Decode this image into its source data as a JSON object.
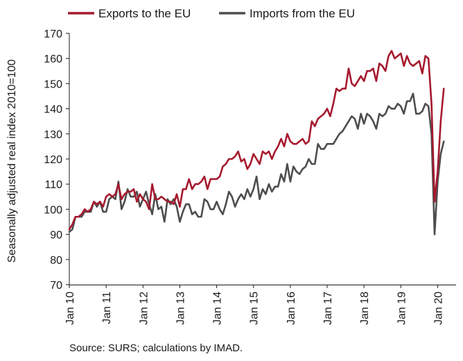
{
  "chart_data": {
    "type": "line",
    "title": "",
    "ylabel": "Seasonally adjusted real index 2010=100",
    "xlabel": "",
    "ylim": [
      70,
      170
    ],
    "yticks": [
      70,
      80,
      90,
      100,
      110,
      120,
      130,
      140,
      150,
      160,
      170
    ],
    "xlim": [
      0,
      126
    ],
    "xticks": [
      {
        "label": "Jan 10",
        "month": 0
      },
      {
        "label": "Jan 11",
        "month": 12
      },
      {
        "label": "Jan 12",
        "month": 24
      },
      {
        "label": "Jan 13",
        "month": 36
      },
      {
        "label": "Jan 14",
        "month": 48
      },
      {
        "label": "Jan 15",
        "month": 60
      },
      {
        "label": "Jan 16",
        "month": 72
      },
      {
        "label": "Jan 17",
        "month": 84
      },
      {
        "label": "Jan 18",
        "month": 96
      },
      {
        "label": "Jan 19",
        "month": 108
      },
      {
        "label": "Jan 20",
        "month": 120
      }
    ],
    "grid": false,
    "legend": "top-left",
    "source": "Source: SURS; calculations by IMAD.",
    "series": [
      {
        "name": "Exports to the EU",
        "color": "#A6192E",
        "values": [
          92,
          94,
          97,
          97,
          98,
          100,
          99,
          100,
          103,
          102,
          103,
          101,
          105,
          106,
          105,
          106,
          110,
          104,
          106,
          107,
          107,
          108,
          103,
          106,
          104,
          103,
          100,
          110,
          104,
          104,
          105,
          104,
          103,
          103,
          102,
          106,
          101,
          108,
          108,
          112,
          108,
          110,
          110,
          111,
          113,
          108,
          112,
          112,
          112,
          113,
          117,
          118,
          120,
          120,
          121,
          123,
          119,
          120,
          116,
          118,
          122,
          120,
          118,
          123,
          122,
          123,
          120,
          123,
          125,
          128,
          125,
          130,
          127,
          126,
          126,
          127,
          128,
          126,
          127,
          135,
          133,
          136,
          137,
          138,
          140,
          137,
          142,
          148,
          147,
          148,
          148,
          156,
          150,
          149,
          151,
          153,
          151,
          155,
          155,
          156,
          151,
          158,
          157,
          155,
          161,
          163,
          160,
          161,
          162,
          157,
          161,
          158,
          157,
          158,
          159,
          154,
          161,
          160,
          142,
          103,
          115,
          135,
          148
        ]
      },
      {
        "name": "Imports from the EU",
        "color": "#4D4D4D",
        "values": [
          91,
          92,
          97,
          97,
          97,
          99,
          99,
          99,
          103,
          101,
          103,
          99,
          99,
          104,
          105,
          104,
          111,
          100,
          103,
          108,
          105,
          105,
          107,
          101,
          104,
          107,
          102,
          98,
          106,
          100,
          101,
          95,
          104,
          102,
          104,
          101,
          95,
          99,
          102,
          102,
          98,
          99,
          97,
          97,
          104,
          103,
          100,
          100,
          103,
          100,
          98,
          102,
          107,
          105,
          101,
          104,
          106,
          104,
          108,
          105,
          108,
          113,
          104,
          108,
          106,
          110,
          107,
          109,
          109,
          114,
          111,
          118,
          111,
          117,
          115,
          114,
          116,
          117,
          120,
          118,
          118,
          126,
          124,
          124,
          126,
          126,
          126,
          128,
          130,
          131,
          133,
          135,
          137,
          136,
          132,
          138,
          134,
          138,
          137,
          135,
          132,
          138,
          137,
          138,
          141,
          140,
          140,
          142,
          141,
          138,
          143,
          143,
          146,
          138,
          138,
          139,
          142,
          141,
          130,
          90,
          111,
          122,
          127
        ]
      }
    ]
  }
}
